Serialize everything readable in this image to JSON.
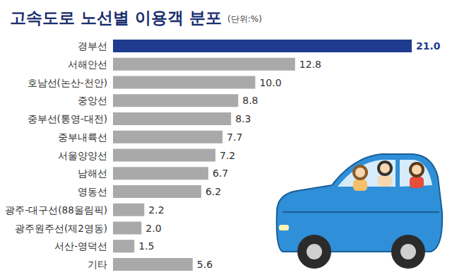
{
  "chart_data": {
    "type": "bar",
    "orientation": "horizontal",
    "title": "고속도로 노선별 이용객 분포",
    "subtitle": "(단위:%)",
    "categories": [
      "경부선",
      "서해안선",
      "호남선(논산-천안)",
      "중앙선",
      "중부선(통영-대전)",
      "중부내륙선",
      "서울양양선",
      "남해선",
      "영동선",
      "광주-대구선(88올림픽)",
      "광주원주선(제2영동)",
      "서산-영덕선",
      "기타"
    ],
    "values": [
      21.0,
      12.8,
      10.0,
      8.8,
      8.3,
      7.7,
      7.2,
      6.7,
      6.2,
      2.2,
      2.0,
      1.5,
      5.6
    ],
    "value_labels": [
      "21.0",
      "12.8",
      "10.0",
      "8.8",
      "8.3",
      "7.7",
      "7.2",
      "6.7",
      "6.2",
      "2.2",
      "2.0",
      "1.5",
      "5.6"
    ],
    "colors": [
      "#1f3b8f",
      "#a9a9a9",
      "#a9a9a9",
      "#a9a9a9",
      "#a9a9a9",
      "#a9a9a9",
      "#a9a9a9",
      "#a9a9a9",
      "#a9a9a9",
      "#a9a9a9",
      "#a9a9a9",
      "#a9a9a9",
      "#a9a9a9"
    ],
    "xlim": [
      0,
      21
    ],
    "data_labels": true,
    "tick_labels": "y",
    "grid": false
  }
}
